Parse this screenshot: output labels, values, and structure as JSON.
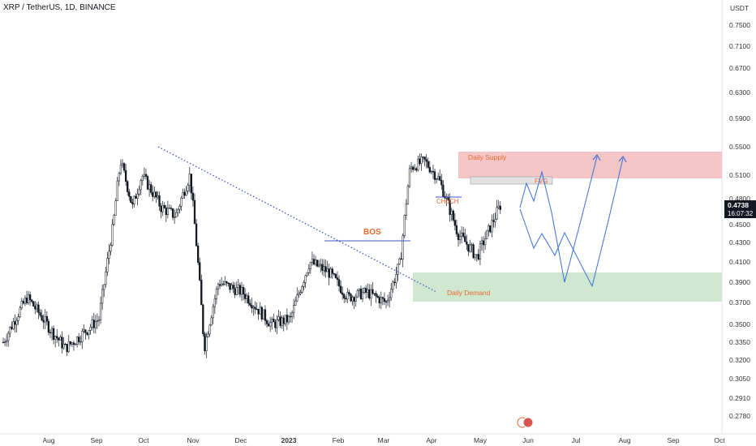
{
  "title": "XRP / TetherUS, 1D, BINANCE",
  "currency": "USDT",
  "price_label": {
    "value": "0.4738",
    "countdown": "16:07:32"
  },
  "colors": {
    "candle": "#131722",
    "supply": "#f4c6c8",
    "demand": "#cfe8cf",
    "fvg": "#e2e2e2",
    "arrow": "#3a6fd8",
    "annot": "#e8692d",
    "trend": "#3f55c8"
  },
  "annotations": {
    "bos": "BOS",
    "supply": "Daily Supply",
    "demand": "Daily Demand",
    "fvg": "FVG",
    "choch": "CHoCH"
  },
  "chart_data": {
    "type": "candlestick",
    "symbol": "XRP / TetherUS",
    "y_ticks": [
      "0.7500",
      "0.7100",
      "0.6700",
      "0.6300",
      "0.5900",
      "0.5500",
      "0.5100",
      "0.4800",
      "0.4500",
      "0.4300",
      "0.4100",
      "0.3900",
      "0.3700",
      "0.3500",
      "0.3350",
      "0.3200",
      "0.3050",
      "0.2910",
      "0.2780"
    ],
    "x_ticks": [
      "Aug",
      "Sep",
      "Oct",
      "Nov",
      "Dec",
      "2023",
      "Feb",
      "Mar",
      "Apr",
      "May",
      "Jun",
      "Jul",
      "Aug",
      "Sep",
      "Oct"
    ],
    "series": [
      {
        "m": 0.0,
        "close": 0.335
      },
      {
        "m": 0.5,
        "close": 0.375
      },
      {
        "m": 1.0,
        "close": 0.345
      },
      {
        "m": 1.3,
        "close": 0.33
      },
      {
        "m": 1.6,
        "close": 0.34
      },
      {
        "m": 2.0,
        "close": 0.355
      },
      {
        "m": 2.3,
        "close": 0.45
      },
      {
        "m": 2.45,
        "close": 0.53
      },
      {
        "m": 2.7,
        "close": 0.47
      },
      {
        "m": 2.9,
        "close": 0.51
      },
      {
        "m": 3.3,
        "close": 0.47
      },
      {
        "m": 3.6,
        "close": 0.46
      },
      {
        "m": 3.9,
        "close": 0.51
      },
      {
        "m": 4.2,
        "close": 0.33
      },
      {
        "m": 4.5,
        "close": 0.39
      },
      {
        "m": 5.0,
        "close": 0.38
      },
      {
        "m": 5.6,
        "close": 0.35
      },
      {
        "m": 6.0,
        "close": 0.355
      },
      {
        "m": 6.4,
        "close": 0.41
      },
      {
        "m": 6.8,
        "close": 0.4
      },
      {
        "m": 7.2,
        "close": 0.375
      },
      {
        "m": 7.6,
        "close": 0.38
      },
      {
        "m": 8.0,
        "close": 0.37
      },
      {
        "m": 8.3,
        "close": 0.41
      },
      {
        "m": 8.5,
        "close": 0.52
      },
      {
        "m": 8.8,
        "close": 0.53
      },
      {
        "m": 9.1,
        "close": 0.505
      },
      {
        "m": 9.5,
        "close": 0.44
      },
      {
        "m": 9.9,
        "close": 0.415
      },
      {
        "m": 10.2,
        "close": 0.45
      },
      {
        "m": 10.4,
        "close": 0.474
      }
    ],
    "zones": [
      {
        "name": "Daily Supply",
        "y": [
          0.5,
          0.545
        ]
      },
      {
        "name": "Daily Demand",
        "y": [
          0.373,
          0.402
        ]
      }
    ],
    "grid": false
  }
}
